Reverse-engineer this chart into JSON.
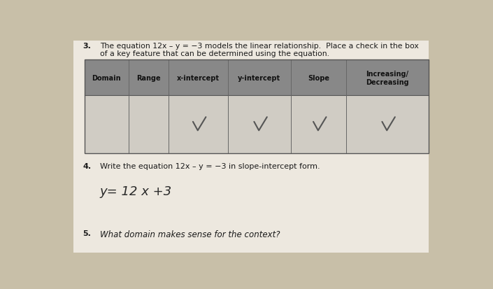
{
  "bg_color": "#c8bfa8",
  "page_bg": "#ede8df",
  "q3_num": "3.",
  "q3_line1": "The equation 12x – y = −3 models the linear relationship.  Place a check in the box",
  "q3_line2": "of a key feature that can be determined using the equation.",
  "table_headers": [
    "Domain",
    "Range",
    "x-intercept",
    "y-intercept",
    "Slope",
    "Increasing/\nDecreasing"
  ],
  "header_bg": "#888888",
  "row_bg": "#d0ccc4",
  "check_cols": [
    2,
    3,
    4,
    5
  ],
  "q4_num": "4.",
  "q4_text": "Write the equation 12x – y = −3 in slope-intercept form.",
  "q4_answer": "y= 12 x +3",
  "q5_num": "5.",
  "q5_text": "What domain makes sense for the context?"
}
